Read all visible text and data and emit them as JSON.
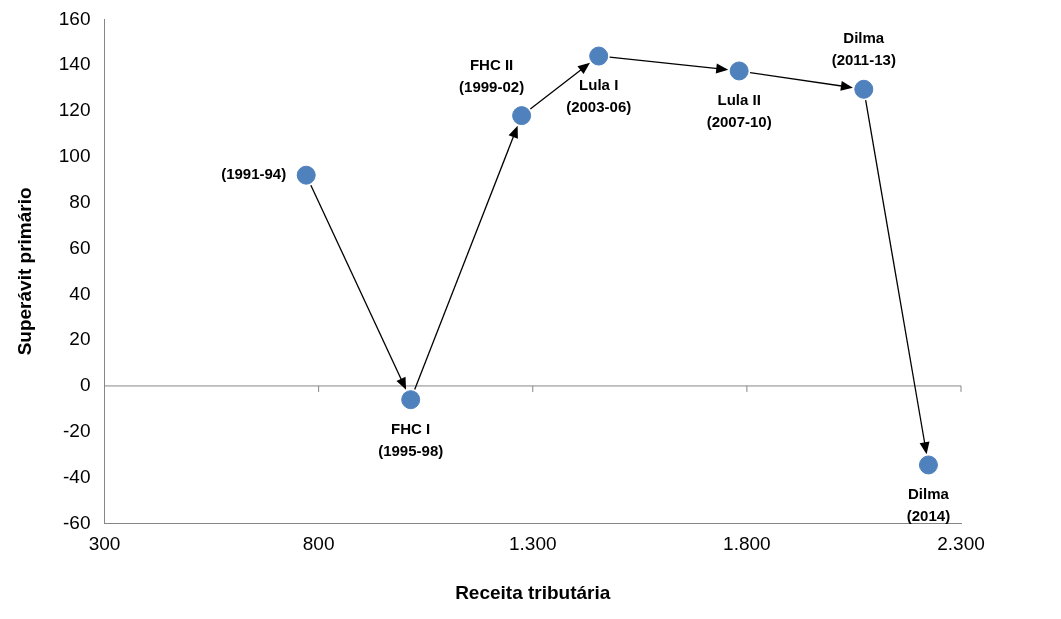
{
  "chart_data": {
    "type": "scatter",
    "xlabel": "Receita tributária",
    "ylabel": "Superávit primário",
    "x": [
      771,
      1015,
      1274,
      1454,
      1782,
      2073,
      2224
    ],
    "values": [
      92,
      -6,
      118,
      144,
      137.5,
      129.5,
      -34.5
    ],
    "color": "#4f81bd",
    "marker": "circle",
    "grid": false,
    "legend": false,
    "xlim": [
      300,
      2300
    ],
    "xticks": [
      {
        "value": 300,
        "label": "300"
      },
      {
        "value": 800,
        "label": "800"
      },
      {
        "value": 1300,
        "label": "1.300"
      },
      {
        "value": 1800,
        "label": "1.800"
      },
      {
        "value": 2300,
        "label": "2.300"
      }
    ],
    "ylim": [
      -60,
      160
    ],
    "yticks": [
      -60,
      -40,
      -20,
      0,
      20,
      40,
      60,
      80,
      100,
      120,
      140,
      160
    ],
    "ref_lines": [
      {
        "axis": "y",
        "value": 0,
        "color": "#868686"
      }
    ],
    "annotations": [
      {
        "text": "(1991-94)",
        "x": 771,
        "y": 92
      },
      {
        "text": "FHC I\n(1995-98)",
        "x": 1015,
        "y": -6
      },
      {
        "text": "FHC II\n(1999-02)",
        "x": 1274,
        "y": 118
      },
      {
        "text": "Lula I\n(2003-06)",
        "x": 1454,
        "y": 144
      },
      {
        "text": "Lula II\n(2007-10)",
        "x": 1782,
        "y": 137.5
      },
      {
        "text": "Dilma\n(2011-13)",
        "x": 2073,
        "y": 129.5
      },
      {
        "text": "Dilma\n(2014)",
        "x": 2224,
        "y": -34.5
      }
    ]
  }
}
